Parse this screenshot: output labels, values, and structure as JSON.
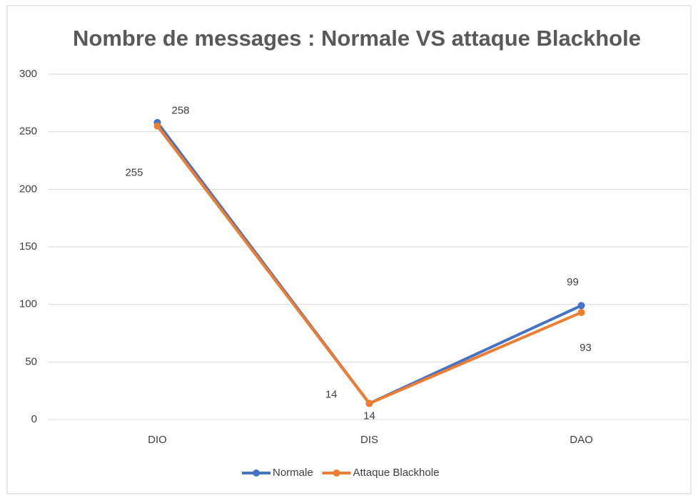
{
  "chart_data": {
    "type": "line",
    "title": "Nombre de messages : Normale VS attaque Blackhole",
    "categories": [
      "DIO",
      "DIS",
      "DAO"
    ],
    "series": [
      {
        "name": "Normale",
        "color": "#4472c4",
        "values": [
          258,
          14,
          99
        ]
      },
      {
        "name": "Attaque Blackhole",
        "color": "#ed7d31",
        "values": [
          255,
          14,
          93
        ]
      }
    ],
    "ylim": [
      0,
      300
    ],
    "yticks": [
      0,
      50,
      100,
      150,
      200,
      250,
      300
    ],
    "grid": true,
    "legend": "bottom"
  }
}
